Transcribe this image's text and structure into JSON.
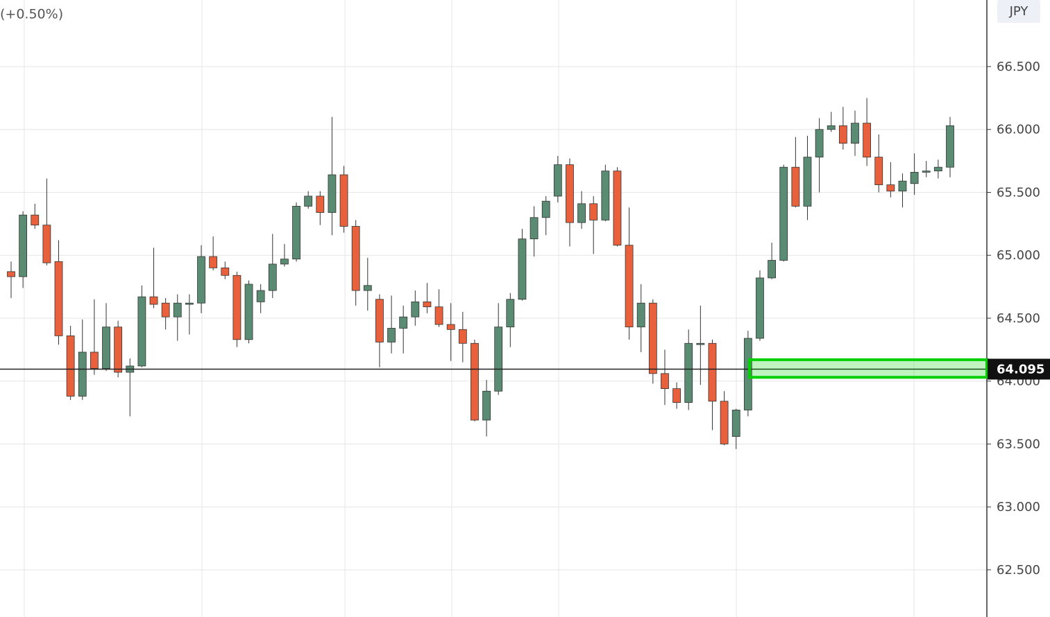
{
  "chart_data": {
    "type": "candlestick",
    "subtitle": "(+0.50%)",
    "ylabel": "JPY",
    "ylim": [
      62.125,
      67.029
    ],
    "yticks": [
      {
        "value": 62.5,
        "label": "62.500"
      },
      {
        "value": 63,
        "label": "63.000"
      },
      {
        "value": 63.5,
        "label": "63.500"
      },
      {
        "value": 64,
        "label": "64.000"
      },
      {
        "value": 64.5,
        "label": "64.500"
      },
      {
        "value": 65,
        "label": "65.000"
      },
      {
        "value": 65.5,
        "label": "65.500"
      },
      {
        "value": 66,
        "label": "66.000"
      },
      {
        "value": 66.5,
        "label": "66.500"
      }
    ],
    "grid": true,
    "up_color": "#5a8c74",
    "down_color": "#e8613c",
    "price_line": {
      "value": 64.095,
      "label": "64.095"
    },
    "zone": {
      "low": 64.03,
      "high": 64.17,
      "color": "#00d000"
    },
    "open": [
      64.87,
      64.83,
      65.32,
      65.24,
      64.95,
      64.36,
      63.88,
      64.23,
      64.1,
      64.43,
      64.07,
      64.12,
      64.67,
      64.62,
      64.51,
      64.61,
      64.62,
      64.99,
      64.9,
      64.84,
      64.33,
      64.63,
      64.72,
      64.93,
      64.97,
      65.39,
      65.47,
      65.34,
      65.64,
      65.23,
      64.72,
      64.65,
      64.31,
      64.42,
      64.51,
      64.63,
      64.59,
      64.45,
      64.41,
      64.3,
      63.69,
      63.92,
      64.43,
      64.65,
      65.13,
      65.3,
      65.47,
      65.72,
      65.26,
      65.41,
      65.28,
      65.67,
      65.08,
      64.43,
      64.62,
      64.06,
      63.94,
      63.83,
      64.29,
      64.3,
      63.84,
      63.56,
      63.77,
      64.34,
      64.82,
      64.96,
      65.7,
      65.39,
      65.78,
      66.0,
      66.03,
      65.89,
      66.05,
      65.78,
      65.56,
      65.51,
      65.57,
      65.66,
      65.67,
      65.7
    ],
    "high": [
      64.95,
      65.35,
      65.41,
      65.61,
      65.12,
      64.44,
      64.49,
      64.65,
      64.62,
      64.48,
      64.18,
      64.76,
      65.06,
      64.66,
      64.69,
      64.69,
      65.08,
      65.15,
      64.95,
      64.87,
      64.8,
      64.77,
      65.17,
      65.09,
      65.42,
      65.51,
      65.51,
      66.1,
      65.71,
      65.28,
      64.98,
      64.69,
      64.68,
      64.6,
      64.72,
      64.78,
      64.73,
      64.62,
      64.55,
      64.33,
      64.01,
      64.62,
      64.7,
      65.21,
      65.39,
      65.47,
      65.79,
      65.77,
      65.51,
      65.47,
      65.72,
      65.7,
      65.38,
      64.77,
      64.65,
      64.25,
      63.99,
      64.41,
      64.6,
      64.33,
      63.92,
      63.78,
      64.4,
      64.88,
      65.1,
      65.72,
      65.94,
      65.95,
      66.09,
      66.14,
      66.18,
      66.15,
      66.25,
      65.96,
      65.74,
      65.65,
      65.81,
      65.75,
      65.76,
      66.1
    ],
    "low": [
      64.66,
      64.74,
      65.21,
      64.92,
      64.29,
      63.85,
      63.85,
      64.05,
      64.08,
      64.03,
      63.72,
      64.11,
      64.58,
      64.41,
      64.32,
      64.37,
      64.54,
      64.88,
      64.81,
      64.27,
      64.3,
      64.54,
      64.66,
      64.91,
      64.95,
      65.37,
      65.24,
      65.16,
      65.18,
      64.6,
      64.56,
      64.11,
      64.22,
      64.22,
      64.44,
      64.54,
      64.43,
      64.16,
      64.15,
      63.68,
      63.56,
      63.89,
      64.27,
      64.64,
      64.99,
      65.16,
      65.42,
      65.07,
      65.21,
      65.01,
      65.27,
      65.07,
      64.33,
      64.23,
      63.98,
      63.81,
      63.78,
      63.77,
      63.97,
      63.61,
      63.49,
      63.46,
      63.72,
      64.32,
      64.81,
      64.95,
      65.38,
      65.28,
      65.5,
      65.98,
      65.84,
      65.79,
      65.71,
      65.5,
      65.46,
      65.38,
      65.48,
      65.62,
      65.61,
      65.62
    ],
    "close": [
      64.83,
      65.32,
      65.24,
      64.94,
      64.36,
      63.88,
      64.23,
      64.1,
      64.43,
      64.07,
      64.12,
      64.67,
      64.61,
      64.51,
      64.62,
      64.62,
      64.99,
      64.9,
      64.84,
      64.33,
      64.77,
      64.72,
      64.93,
      64.97,
      65.39,
      65.47,
      65.34,
      65.64,
      65.23,
      64.72,
      64.76,
      64.31,
      64.42,
      64.51,
      64.63,
      64.59,
      64.45,
      64.41,
      64.3,
      63.69,
      63.92,
      64.43,
      64.65,
      65.13,
      65.3,
      65.43,
      65.72,
      65.26,
      65.41,
      65.28,
      65.67,
      65.08,
      64.43,
      64.62,
      64.06,
      63.94,
      63.83,
      64.3,
      64.3,
      63.84,
      63.5,
      63.77,
      64.34,
      64.82,
      64.96,
      65.7,
      65.39,
      65.78,
      66.0,
      66.03,
      65.89,
      66.05,
      65.78,
      65.56,
      65.51,
      65.59,
      65.66,
      65.67,
      65.7,
      66.03
    ]
  }
}
